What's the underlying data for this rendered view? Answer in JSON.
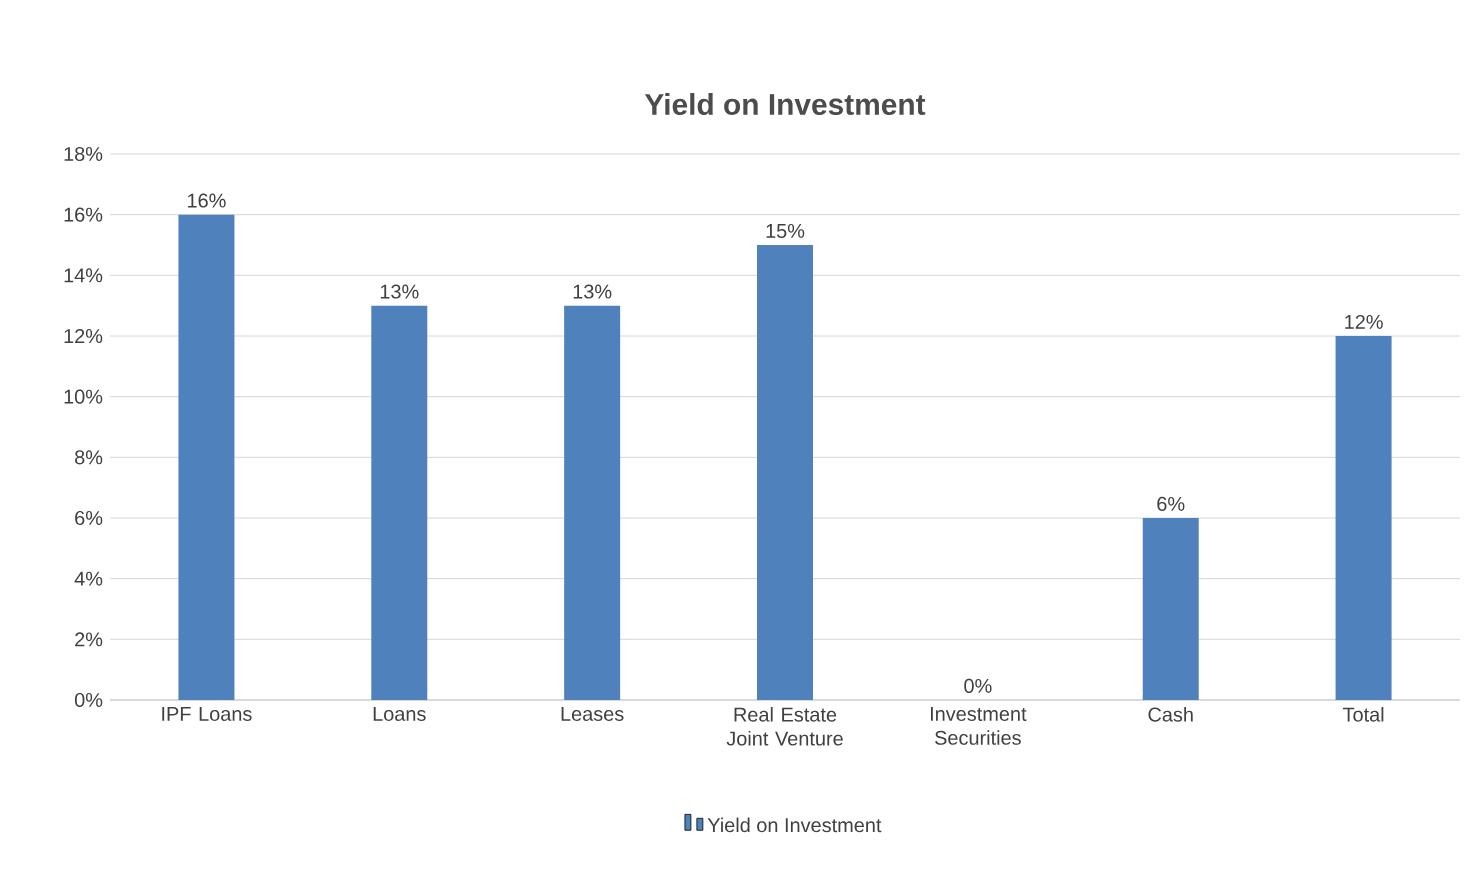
{
  "chart_data": {
    "type": "bar",
    "title": "Yield on Investment",
    "categories": [
      "IPF Loans",
      "Loans",
      "Leases",
      "Real Estate Joint Venture",
      "Investment Securities",
      "Cash",
      "Total"
    ],
    "series": [
      {
        "name": "Yield on Investment",
        "color": "#4f81bd",
        "values": [
          16,
          13,
          13,
          15,
          0,
          6,
          12
        ],
        "value_labels": [
          "16%",
          "13%",
          "13%",
          "15%",
          "0%",
          "6%",
          "12%"
        ]
      }
    ],
    "ylim": [
      0,
      18
    ],
    "yticks": [
      {
        "value": 0,
        "label": "0%"
      },
      {
        "value": 2,
        "label": "2%"
      },
      {
        "value": 4,
        "label": "4%"
      },
      {
        "value": 6,
        "label": "6%"
      },
      {
        "value": 8,
        "label": "8%"
      },
      {
        "value": 10,
        "label": "10%"
      },
      {
        "value": 12,
        "label": "12%"
      },
      {
        "value": 14,
        "label": "14%"
      },
      {
        "value": 16,
        "label": "16%"
      },
      {
        "value": 18,
        "label": "18%"
      }
    ],
    "grid": "y",
    "legend": "bottom"
  }
}
